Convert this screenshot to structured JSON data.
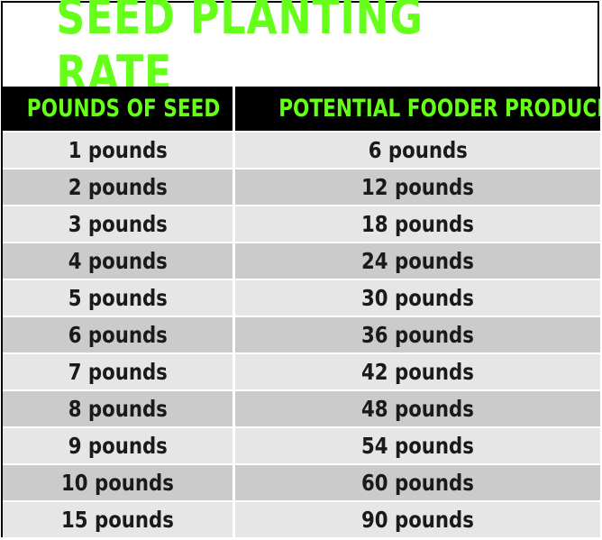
{
  "title": "SEED PLANTING RATE",
  "colors": {
    "accent_green": "#66ff1a",
    "header_bg": "#000000",
    "row_light": "#e6e6e6",
    "row_dark": "#cbcbcb"
  },
  "table": {
    "headers": [
      "POUNDS OF SEED",
      "POTENTIAL FOODER PRODUCED"
    ],
    "rows": [
      [
        "1 pounds",
        "6 pounds"
      ],
      [
        "2 pounds",
        "12 pounds"
      ],
      [
        "3 pounds",
        "18 pounds"
      ],
      [
        "4 pounds",
        "24 pounds"
      ],
      [
        "5 pounds",
        "30 pounds"
      ],
      [
        "6 pounds",
        "36 pounds"
      ],
      [
        "7 pounds",
        "42 pounds"
      ],
      [
        "8 pounds",
        "48 pounds"
      ],
      [
        "9 pounds",
        "54 pounds"
      ],
      [
        "10 pounds",
        "60 pounds"
      ],
      [
        "15 pounds",
        "90 pounds"
      ]
    ]
  }
}
